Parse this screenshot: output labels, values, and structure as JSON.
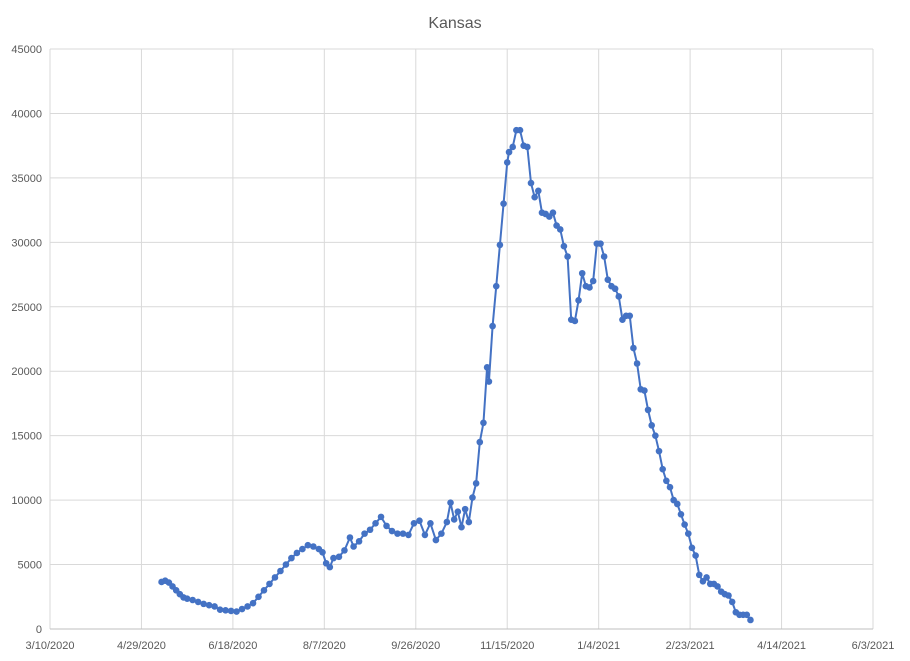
{
  "chart_data": {
    "type": "line",
    "title": "Kansas",
    "xlabel": "",
    "ylabel": "",
    "xlim": [
      "3/10/2020",
      "6/3/2021"
    ],
    "ylim": [
      0,
      45000
    ],
    "x_ticks": [
      "3/10/2020",
      "4/29/2020",
      "6/18/2020",
      "8/7/2020",
      "9/26/2020",
      "11/15/2020",
      "1/4/2021",
      "2/23/2021",
      "4/14/2021",
      "6/3/2021"
    ],
    "y_ticks": [
      "0",
      "5000",
      "10000",
      "15000",
      "20000",
      "25000",
      "30000",
      "35000",
      "40000",
      "45000"
    ],
    "grid": true,
    "legend": "none",
    "series_color": "#4472C4",
    "series": [
      {
        "points": [
          [
            "5/10/2020",
            3650
          ],
          [
            "5/12/2020",
            3750
          ],
          [
            "5/14/2020",
            3600
          ],
          [
            "5/16/2020",
            3300
          ],
          [
            "5/18/2020",
            3000
          ],
          [
            "5/20/2020",
            2700
          ],
          [
            "5/22/2020",
            2450
          ],
          [
            "5/24/2020",
            2350
          ],
          [
            "5/27/2020",
            2250
          ],
          [
            "5/30/2020",
            2100
          ],
          [
            "6/2/2020",
            1950
          ],
          [
            "6/5/2020",
            1850
          ],
          [
            "6/8/2020",
            1750
          ],
          [
            "6/11/2020",
            1500
          ],
          [
            "6/14/2020",
            1450
          ],
          [
            "6/17/2020",
            1400
          ],
          [
            "6/20/2020",
            1350
          ],
          [
            "6/23/2020",
            1550
          ],
          [
            "6/26/2020",
            1750
          ],
          [
            "6/29/2020",
            2000
          ],
          [
            "7/2/2020",
            2500
          ],
          [
            "7/5/2020",
            3000
          ],
          [
            "7/8/2020",
            3500
          ],
          [
            "7/11/2020",
            4000
          ],
          [
            "7/14/2020",
            4500
          ],
          [
            "7/17/2020",
            5000
          ],
          [
            "7/20/2020",
            5500
          ],
          [
            "7/23/2020",
            5900
          ],
          [
            "7/26/2020",
            6200
          ],
          [
            "7/29/2020",
            6500
          ],
          [
            "8/1/2020",
            6400
          ],
          [
            "8/4/2020",
            6200
          ],
          [
            "8/6/2020",
            5950
          ],
          [
            "8/8/2020",
            5100
          ],
          [
            "8/10/2020",
            4800
          ],
          [
            "8/12/2020",
            5500
          ],
          [
            "8/15/2020",
            5600
          ],
          [
            "8/18/2020",
            6100
          ],
          [
            "8/21/2020",
            7100
          ],
          [
            "8/23/2020",
            6400
          ],
          [
            "8/26/2020",
            6800
          ],
          [
            "8/29/2020",
            7400
          ],
          [
            "9/1/2020",
            7700
          ],
          [
            "9/4/2020",
            8200
          ],
          [
            "9/7/2020",
            8700
          ],
          [
            "9/10/2020",
            8000
          ],
          [
            "9/13/2020",
            7600
          ],
          [
            "9/16/2020",
            7400
          ],
          [
            "9/19/2020",
            7400
          ],
          [
            "9/22/2020",
            7300
          ],
          [
            "9/25/2020",
            8200
          ],
          [
            "9/28/2020",
            8400
          ],
          [
            "10/1/2020",
            7300
          ],
          [
            "10/4/2020",
            8200
          ],
          [
            "10/7/2020",
            6900
          ],
          [
            "10/10/2020",
            7400
          ],
          [
            "10/13/2020",
            8300
          ],
          [
            "10/15/2020",
            9800
          ],
          [
            "10/17/2020",
            8500
          ],
          [
            "10/19/2020",
            9100
          ],
          [
            "10/21/2020",
            7900
          ],
          [
            "10/23/2020",
            9300
          ],
          [
            "10/25/2020",
            8300
          ],
          [
            "10/27/2020",
            10200
          ],
          [
            "10/29/2020",
            11300
          ],
          [
            "10/31/2020",
            14500
          ],
          [
            "11/2/2020",
            16000
          ],
          [
            "11/4/2020",
            20300
          ],
          [
            "11/5/2020",
            19200
          ],
          [
            "11/7/2020",
            23500
          ],
          [
            "11/9/2020",
            26600
          ],
          [
            "11/11/2020",
            29800
          ],
          [
            "11/13/2020",
            33000
          ],
          [
            "11/15/2020",
            36200
          ],
          [
            "11/16/2020",
            37000
          ],
          [
            "11/18/2020",
            37400
          ],
          [
            "11/20/2020",
            38700
          ],
          [
            "11/22/2020",
            38700
          ],
          [
            "11/24/2020",
            37500
          ],
          [
            "11/26/2020",
            37400
          ],
          [
            "11/28/2020",
            34600
          ],
          [
            "11/30/2020",
            33500
          ],
          [
            "12/2/2020",
            34000
          ],
          [
            "12/4/2020",
            32300
          ],
          [
            "12/6/2020",
            32200
          ],
          [
            "12/8/2020",
            32000
          ],
          [
            "12/10/2020",
            32300
          ],
          [
            "12/12/2020",
            31300
          ],
          [
            "12/14/2020",
            31000
          ],
          [
            "12/16/2020",
            29700
          ],
          [
            "12/18/2020",
            28900
          ],
          [
            "12/20/2020",
            24000
          ],
          [
            "12/22/2020",
            23900
          ],
          [
            "12/24/2020",
            25500
          ],
          [
            "12/26/2020",
            27600
          ],
          [
            "12/28/2020",
            26600
          ],
          [
            "12/30/2020",
            26500
          ],
          [
            "1/1/2021",
            27000
          ],
          [
            "1/3/2021",
            29900
          ],
          [
            "1/5/2021",
            29900
          ],
          [
            "1/7/2021",
            28900
          ],
          [
            "1/9/2021",
            27100
          ],
          [
            "1/11/2021",
            26600
          ],
          [
            "1/13/2021",
            26400
          ],
          [
            "1/15/2021",
            25800
          ],
          [
            "1/17/2021",
            24000
          ],
          [
            "1/19/2021",
            24300
          ],
          [
            "1/21/2021",
            24300
          ],
          [
            "1/23/2021",
            21800
          ],
          [
            "1/25/2021",
            20600
          ],
          [
            "1/27/2021",
            18600
          ],
          [
            "1/29/2021",
            18500
          ],
          [
            "1/31/2021",
            17000
          ],
          [
            "2/2/2021",
            15800
          ],
          [
            "2/4/2021",
            15000
          ],
          [
            "2/6/2021",
            13800
          ],
          [
            "2/8/2021",
            12400
          ],
          [
            "2/10/2021",
            11500
          ],
          [
            "2/12/2021",
            11000
          ],
          [
            "2/14/2021",
            10000
          ],
          [
            "2/16/2021",
            9700
          ],
          [
            "2/18/2021",
            8900
          ],
          [
            "2/20/2021",
            8100
          ],
          [
            "2/22/2021",
            7400
          ],
          [
            "2/24/2021",
            6300
          ],
          [
            "2/26/2021",
            5700
          ],
          [
            "2/28/2021",
            4200
          ],
          [
            "3/2/2021",
            3700
          ],
          [
            "3/4/2021",
            4000
          ],
          [
            "3/6/2021",
            3500
          ],
          [
            "3/8/2021",
            3500
          ],
          [
            "3/10/2021",
            3300
          ],
          [
            "3/12/2021",
            2900
          ],
          [
            "3/14/2021",
            2700
          ],
          [
            "3/16/2021",
            2600
          ],
          [
            "3/18/2021",
            2100
          ],
          [
            "3/20/2021",
            1300
          ],
          [
            "3/22/2021",
            1100
          ],
          [
            "3/24/2021",
            1100
          ],
          [
            "3/26/2021",
            1100
          ],
          [
            "3/28/2021",
            700
          ]
        ]
      }
    ]
  }
}
